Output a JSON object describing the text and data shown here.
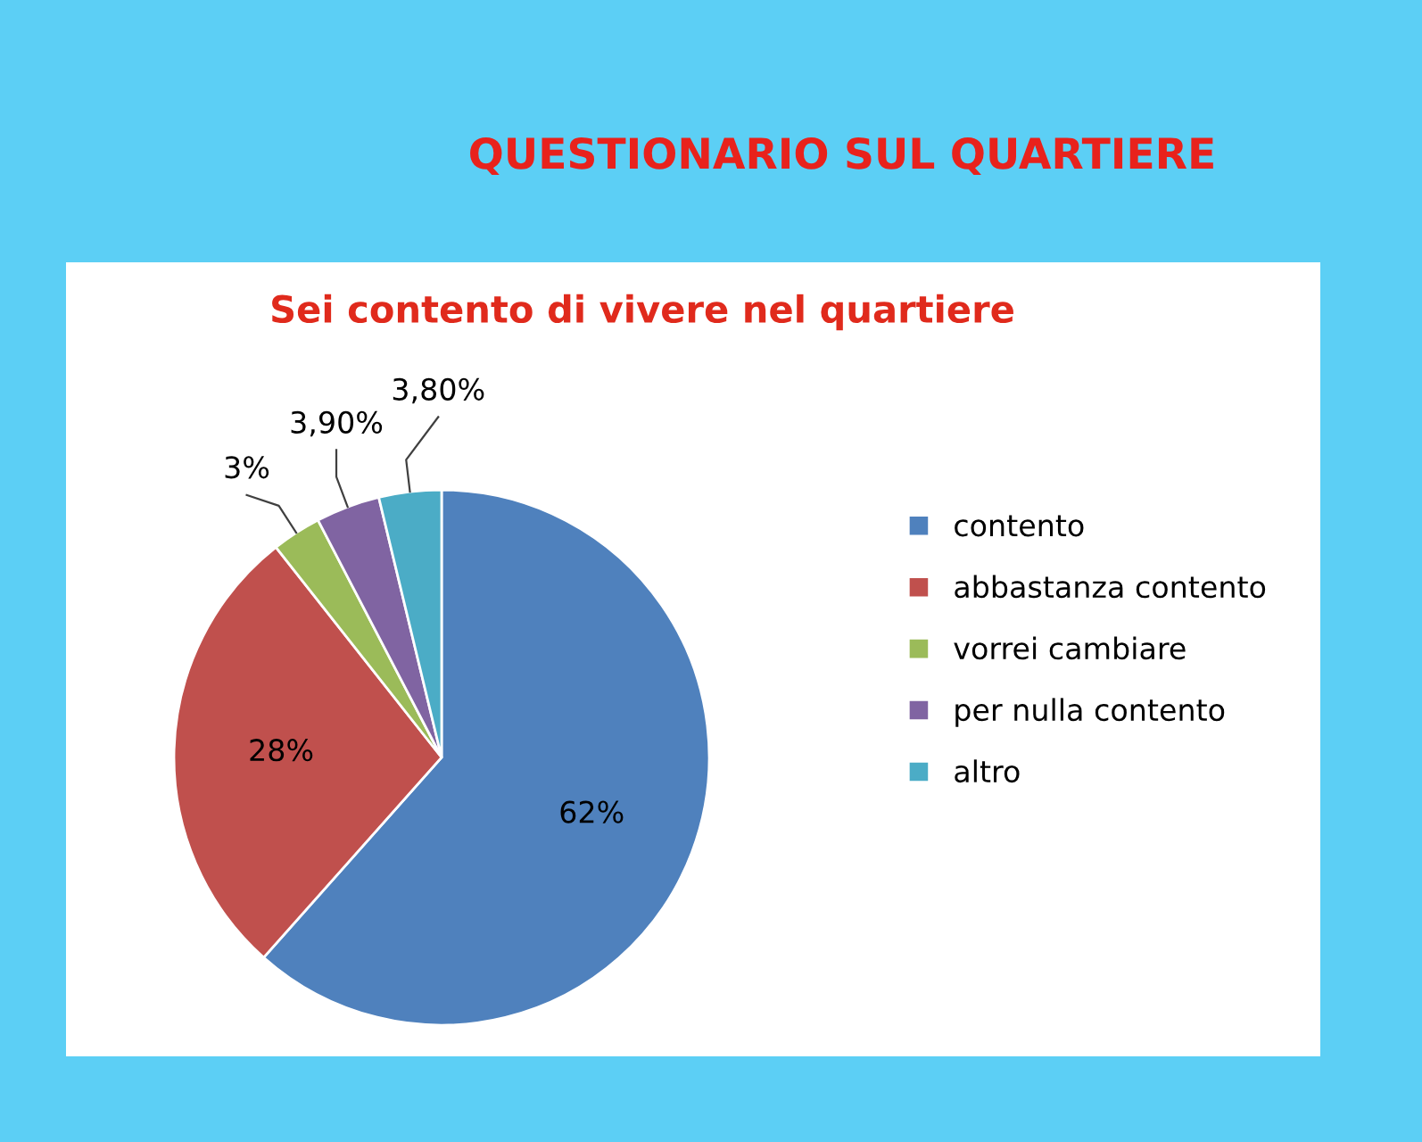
{
  "chart_data": {
    "type": "pie",
    "title": "QUESTIONARIO SUL QUARTIERE",
    "subtitle": "Sei contento di vivere nel quartiere",
    "categories": [
      "contento",
      "abbastanza contento",
      "vorrei cambiare",
      "per nulla contento",
      "altro"
    ],
    "values": [
      62,
      28,
      3,
      3.9,
      3.8
    ],
    "value_labels": [
      "62%",
      "28%",
      "3%",
      "3,90%",
      "3,80%"
    ],
    "colors": [
      "#4f81bd",
      "#c0504d",
      "#9bbb59",
      "#8064a2",
      "#4bacc6"
    ],
    "legend": "right"
  }
}
